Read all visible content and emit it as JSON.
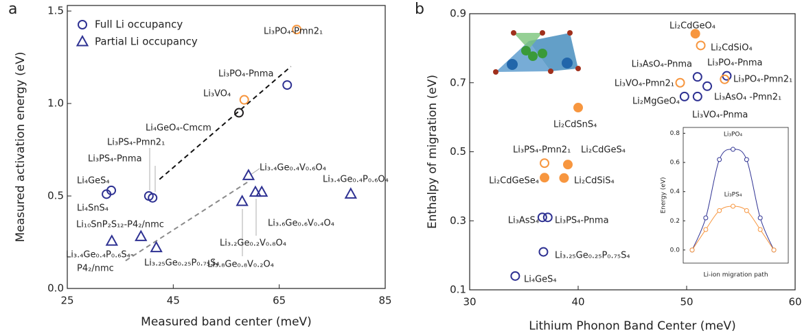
{
  "chart_data": [
    {
      "type": "scatter",
      "panel_label": "a",
      "xlabel": "Measured band center (meV)",
      "ylabel": "Measured activation energy (eV)",
      "xlim": [
        25,
        85
      ],
      "xticks": [
        25,
        45,
        65,
        85
      ],
      "ylim": [
        0,
        1.53
      ],
      "yticks": [
        {
          "value": 0,
          "label": "0.0"
        },
        0.5,
        {
          "value": 1,
          "label": "1.0"
        },
        1.5
      ],
      "legend": "upper left",
      "series": [
        {
          "name": "Full Li occupancy",
          "marker": "circle",
          "color": "#2e3192",
          "x": [
            33.3,
            32.4,
            40.4,
            41.1,
            57.4,
            58.4,
            66.5,
            68.3
          ],
          "values": [
            0.53,
            0.51,
            0.5,
            0.49,
            0.95,
            1.02,
            1.1,
            1.4
          ],
          "point_colors": [
            "#2e3192",
            "#2e3192",
            "#2e3192",
            "#2e3192",
            "#231f20",
            "#f7963f",
            "#2e3192",
            "#f7963f"
          ],
          "labels": [
            "Li₄GeS₄",
            "Li₄SnS₄",
            "Li₃PS₄-Pnma",
            "Li₃PS₄-Pmn2₁",
            "Li₄GeO₄-Cmcm",
            "Li₃VO₄",
            "Li₃PO₄-Pnma",
            "Li₃PO₄-Pmn2₁"
          ]
        },
        {
          "name": "Partial Li occupancy",
          "marker": "triangle",
          "color": "#2e3192",
          "x": [
            38.9,
            33.4,
            41.8,
            58.0,
            59.2,
            60.5,
            61.7,
            78.5
          ],
          "values": [
            0.28,
            0.255,
            0.22,
            0.47,
            0.61,
            0.52,
            0.52,
            0.51
          ],
          "labels": [
            "Li₁₀SnP₂S₁₂-P4₂/nmc",
            "Li₃.₄Ge₀.₄P₀.₆S₄-",
            "Li₃.₂₅Ge₀.₂₅P₀.₇₅S₄",
            "Li₃.₈Ge₀.₈V₀.₂O₄",
            "Li₃.₄Ge₀.₄V₀.₆O₄",
            "Li₃.₂Ge₀.₂V₀.₈O₄",
            "Li₃.₆Ge₀.₆V₀.₄O₄",
            "Li₃.₄Ge₀.₄P₀.₆O₄"
          ]
        }
      ],
      "annotations": [
        "P4₂/nmc"
      ],
      "trendlines": [
        {
          "color": "#111111",
          "x": [
            42.4,
            67.2
          ],
          "values": [
            0.59,
            1.2
          ]
        },
        {
          "color": "#8a8a8a",
          "x": [
            36,
            59.3
          ],
          "values": [
            0.15,
            0.58
          ]
        }
      ]
    },
    {
      "type": "scatter",
      "panel_label": "b",
      "xlabel": "Lithium Phonon Band Center (meV)",
      "ylabel": "Enthalpy of migration (eV)",
      "xlim": [
        30,
        60
      ],
      "xticks": [
        30,
        40,
        50,
        60
      ],
      "ylim": [
        0.1,
        0.9
      ],
      "yticks": [
        0.1,
        0.3,
        0.5,
        0.7,
        0.9
      ],
      "series": [
        {
          "marker": "circle",
          "x": [
            34.2,
            36.8,
            36.7,
            37.2,
            36.9,
            36.9,
            39.05,
            38.7,
            40.0,
            50.8,
            51.3,
            51.0,
            53.7,
            53.5,
            49.4,
            49.8,
            51.0,
            51.9
          ],
          "values": [
            0.14,
            0.21,
            0.31,
            0.31,
            0.425,
            0.467,
            0.463,
            0.424,
            0.628,
            0.842,
            0.808,
            0.717,
            0.72,
            0.71,
            0.7,
            0.66,
            0.66,
            0.69
          ],
          "point_colors": [
            "#2e3192",
            "#2e3192",
            "#2e3192",
            "#2e3192",
            "#f7963f",
            "#f7963f",
            "#f7963f",
            "#f7963f",
            "#f7963f",
            "#f7963f",
            "#f7963f",
            "#2e3192",
            "#2e3192",
            "#f7963f",
            "#f7963f",
            "#2e3192",
            "#2e3192",
            "#2e3192"
          ],
          "filled": [
            false,
            false,
            false,
            false,
            true,
            false,
            true,
            true,
            true,
            true,
            false,
            false,
            false,
            false,
            false,
            false,
            false,
            false
          ],
          "labels": [
            "Li₄GeS₄",
            "Li₃.₂₅Ge₀.₂₅P₀.₇₅S₄",
            "Li₃AsS₄",
            "Li₃PS₄-Pnma",
            "Li₂CdGeSe₄",
            "Li₃PS₄-Pmn2₁",
            "Li₂CdGeS₄",
            "Li₂CdSiS₄",
            "Li₂CdSnS₄",
            "Li₂CdGeO₄",
            "Li₂CdSiO₄",
            "Li₃AsO₄-Pnma",
            "Li₃PO₄-Pnma",
            "Li₃PO₄-Pmn2₁",
            "Li₃VO₄-Pmn2₁",
            "Li₂MgGeO₄",
            "Li₃VO₄-Pnma",
            "Li₃AsO₄ -Pmn2₁"
          ]
        }
      ]
    },
    {
      "type": "line",
      "xlabel": "Li-ion migration path",
      "ylabel": "Energy (eV)",
      "categories": [
        null,
        null,
        null,
        null,
        null,
        null,
        null
      ],
      "ylim": [
        -0.09,
        0.84
      ],
      "yticks": [
        {
          "value": 0,
          "label": "0.0"
        },
        0.2,
        0.4,
        0.6,
        0.8
      ],
      "series": [
        {
          "name": "Li₃PO₄",
          "color": "#2e3192",
          "values": [
            0,
            0.22,
            0.62,
            0.69,
            0.62,
            0.22,
            0
          ]
        },
        {
          "name": "Li₃PS₄",
          "color": "#f7963f",
          "values": [
            0,
            0.14,
            0.27,
            0.3,
            0.27,
            0.14,
            0
          ]
        }
      ]
    }
  ]
}
